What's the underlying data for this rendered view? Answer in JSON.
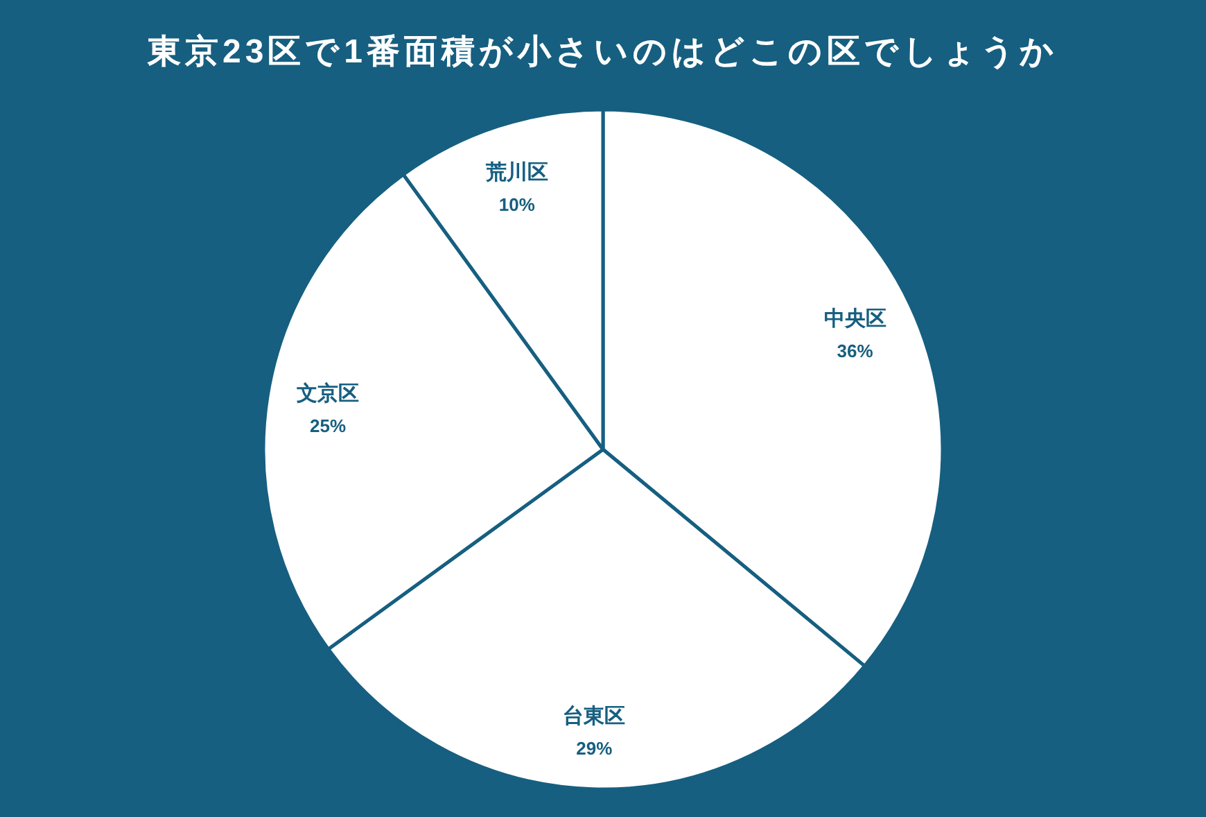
{
  "chart_data": {
    "type": "pie",
    "title": "東京23区で1番面積が小さいのはどこの区でしょうか",
    "categories": [
      "中央区",
      "台東区",
      "文京区",
      "荒川区"
    ],
    "values": [
      36,
      29,
      25,
      10
    ],
    "value_labels": [
      "36%",
      "29%",
      "25%",
      "10%"
    ],
    "colors": [
      "#ffffff",
      "#ffffff",
      "#ffffff",
      "#ffffff"
    ]
  }
}
